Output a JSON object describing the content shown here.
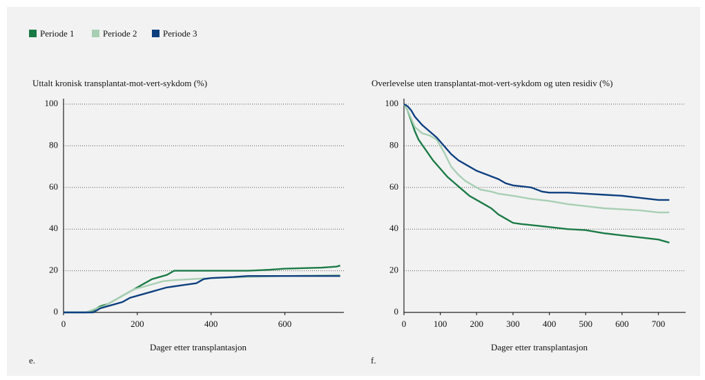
{
  "chart_data": [
    {
      "type": "line",
      "panel_label": "e.",
      "title": "Uttalt kronisk transplantat-mot-vert-sykdom (%)",
      "xlabel": "Dager etter transplantasjon",
      "xlim": [
        0,
        760
      ],
      "ylim": [
        0,
        100
      ],
      "xticks": [
        0,
        200,
        400,
        600
      ],
      "yticks": [
        0,
        20,
        40,
        60,
        80,
        100
      ],
      "grid": true,
      "series": [
        {
          "name": "Periode 1",
          "color": "#1a7a45",
          "x": [
            0,
            60,
            80,
            100,
            120,
            140,
            160,
            180,
            200,
            220,
            240,
            260,
            280,
            300,
            400,
            500,
            560,
            600,
            700,
            740,
            750
          ],
          "values": [
            0,
            0,
            1,
            3,
            4,
            6,
            8,
            10,
            12,
            14,
            16,
            17,
            18,
            20,
            20,
            20,
            20.5,
            21,
            21.5,
            22,
            22.5
          ]
        },
        {
          "name": "Periode 2",
          "color": "#a8cfb3",
          "x": [
            0,
            60,
            90,
            110,
            130,
            150,
            170,
            190,
            210,
            230,
            250,
            270,
            300,
            350,
            400,
            500,
            600,
            750
          ],
          "values": [
            0,
            0,
            2,
            3,
            5,
            7,
            9,
            11,
            12,
            13,
            14,
            15,
            15.5,
            16,
            16.5,
            17,
            17.5,
            18
          ]
        },
        {
          "name": "Periode 3",
          "color": "#0d3f7f",
          "x": [
            0,
            80,
            100,
            120,
            140,
            160,
            180,
            200,
            220,
            240,
            260,
            280,
            300,
            320,
            360,
            380,
            400,
            460,
            500,
            750
          ],
          "values": [
            0,
            0,
            2,
            3,
            4,
            5,
            7,
            8,
            9,
            10,
            11,
            12,
            12.5,
            13,
            14,
            16,
            16.5,
            17,
            17.5,
            17.5
          ]
        }
      ]
    },
    {
      "type": "line",
      "panel_label": "f.",
      "title": "Overlevelse uten transplantat-mot-vert-sykdom og uten residiv (%)",
      "xlabel": "Dager etter transplantasjon",
      "xlim": [
        0,
        775
      ],
      "ylim": [
        0,
        100
      ],
      "xticks": [
        0,
        100,
        200,
        300,
        400,
        500,
        600,
        700
      ],
      "yticks": [
        0,
        20,
        40,
        60,
        80,
        100
      ],
      "grid": true,
      "series": [
        {
          "name": "Periode 1",
          "color": "#1a7a45",
          "x": [
            0,
            10,
            20,
            30,
            40,
            60,
            80,
            100,
            120,
            140,
            160,
            180,
            200,
            220,
            240,
            260,
            280,
            300,
            320,
            400,
            450,
            500,
            550,
            600,
            650,
            700,
            720,
            730
          ],
          "values": [
            100,
            97,
            92,
            87,
            83,
            78,
            73,
            69,
            65,
            62,
            59,
            56,
            54,
            52,
            50,
            47,
            45,
            43,
            42.5,
            41,
            40,
            39.5,
            38,
            37,
            36,
            35,
            34,
            33.5
          ]
        },
        {
          "name": "Periode 2",
          "color": "#a8cfb3",
          "x": [
            0,
            10,
            20,
            30,
            50,
            70,
            90,
            110,
            130,
            150,
            170,
            190,
            210,
            240,
            260,
            300,
            350,
            400,
            450,
            500,
            550,
            600,
            650,
            700,
            730
          ],
          "values": [
            100,
            97,
            93,
            89,
            86,
            85,
            83,
            77,
            70,
            66,
            63,
            61,
            59,
            58,
            57,
            56,
            54.5,
            53.5,
            52,
            51,
            50,
            49.5,
            49,
            48,
            48
          ]
        },
        {
          "name": "Periode 3",
          "color": "#0d3f7f",
          "x": [
            0,
            10,
            20,
            30,
            50,
            70,
            90,
            110,
            130,
            150,
            170,
            200,
            230,
            260,
            280,
            300,
            350,
            380,
            400,
            450,
            500,
            550,
            600,
            650,
            700,
            730
          ],
          "values": [
            100,
            99,
            97,
            94,
            90,
            87,
            84,
            80,
            76,
            73,
            71,
            68,
            66,
            64,
            62,
            61,
            60,
            58,
            57.5,
            57.5,
            57,
            56.5,
            56,
            55,
            54,
            54
          ]
        }
      ]
    }
  ]
}
